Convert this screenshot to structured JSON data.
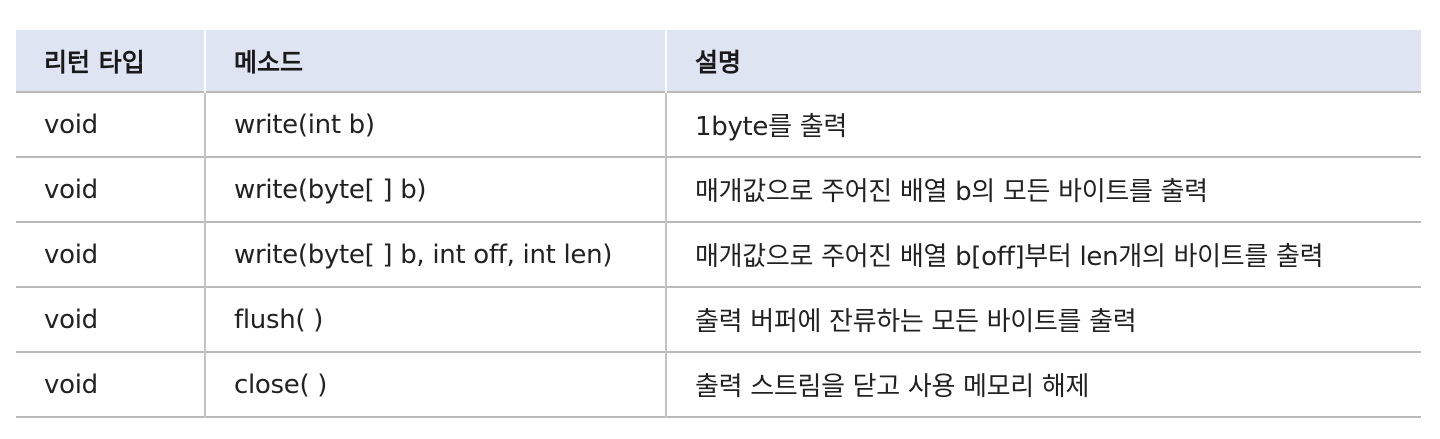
{
  "table": {
    "headers": [
      "리턴 타입",
      "메소드",
      "설명"
    ],
    "rows": [
      {
        "return_type": "void",
        "method": "write(int b)",
        "description": "1byte를 출력"
      },
      {
        "return_type": "void",
        "method": "write(byte[ ] b)",
        "description": "매개값으로 주어진 배열 b의 모든 바이트를 출력"
      },
      {
        "return_type": "void",
        "method": "write(byte[ ] b, int off, int len)",
        "description": "매개값으로 주어진 배열 b[off]부터 len개의 바이트를 출력"
      },
      {
        "return_type": "void",
        "method": "flush( )",
        "description": "출력 버퍼에 잔류하는 모든 바이트를 출력"
      },
      {
        "return_type": "void",
        "method": "close( )",
        "description": "출력 스트림을 닫고 사용 메모리 해제"
      }
    ]
  }
}
